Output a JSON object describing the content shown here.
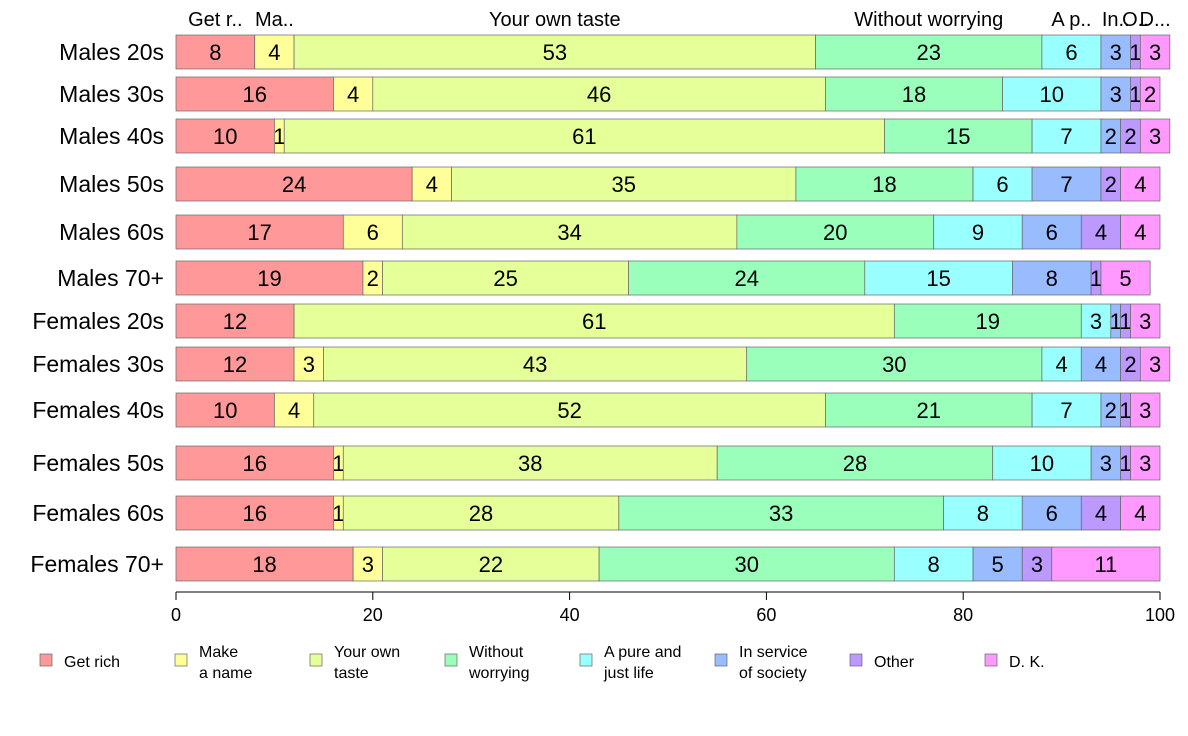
{
  "chart_data": {
    "type": "bar",
    "orientation": "horizontal",
    "stacked": true,
    "categories": [
      "Males 20s",
      "Males 30s",
      "Males 40s",
      "Males 50s",
      "Males 60s",
      "Males 70+",
      "Females 20s",
      "Females 30s",
      "Females 40s",
      "Females 50s",
      "Females 60s",
      "Females 70+"
    ],
    "series": [
      {
        "name": "Get rich",
        "color": "#ff9999",
        "values": [
          8,
          16,
          10,
          24,
          17,
          19,
          12,
          12,
          10,
          16,
          16,
          18
        ]
      },
      {
        "name": "Make a name",
        "color": "#ffff99",
        "values": [
          4,
          4,
          1,
          4,
          6,
          2,
          0,
          3,
          4,
          1,
          1,
          3
        ]
      },
      {
        "name": "Your own taste",
        "color": "#e5ff99",
        "values": [
          53,
          46,
          61,
          35,
          34,
          25,
          61,
          43,
          52,
          38,
          28,
          22
        ]
      },
      {
        "name": "Without worrying",
        "color": "#99ffbb",
        "values": [
          23,
          18,
          15,
          18,
          20,
          24,
          19,
          30,
          21,
          28,
          33,
          30
        ]
      },
      {
        "name": "A pure and just life",
        "color": "#99ffff",
        "values": [
          6,
          10,
          7,
          6,
          9,
          15,
          3,
          4,
          7,
          10,
          8,
          8
        ]
      },
      {
        "name": "In service of society",
        "color": "#99bbff",
        "values": [
          3,
          3,
          2,
          7,
          6,
          8,
          1,
          4,
          2,
          3,
          6,
          5
        ]
      },
      {
        "name": "Other",
        "color": "#bb99ff",
        "values": [
          1,
          1,
          2,
          2,
          4,
          1,
          1,
          2,
          1,
          1,
          4,
          3
        ]
      },
      {
        "name": "D. K.",
        "color": "#ff99ff",
        "values": [
          3,
          2,
          3,
          4,
          4,
          5,
          3,
          3,
          3,
          3,
          4,
          11
        ]
      }
    ],
    "top_labels": [
      "Get r..",
      "Ma..",
      "Your own taste",
      "Without worrying",
      "A p..",
      "In..",
      "O..",
      "D..."
    ],
    "legend_labels": [
      [
        "Get rich"
      ],
      [
        "Make",
        "a name"
      ],
      [
        "Your own",
        "taste"
      ],
      [
        "Without",
        "worrying"
      ],
      [
        "A pure and",
        "just life"
      ],
      [
        "In service",
        "of society"
      ],
      [
        "Other"
      ],
      [
        "D. K."
      ]
    ],
    "xlim": [
      0,
      100
    ],
    "xticks": [
      0,
      20,
      40,
      60,
      80,
      100
    ],
    "grid": false,
    "legend_position": "bottom"
  }
}
